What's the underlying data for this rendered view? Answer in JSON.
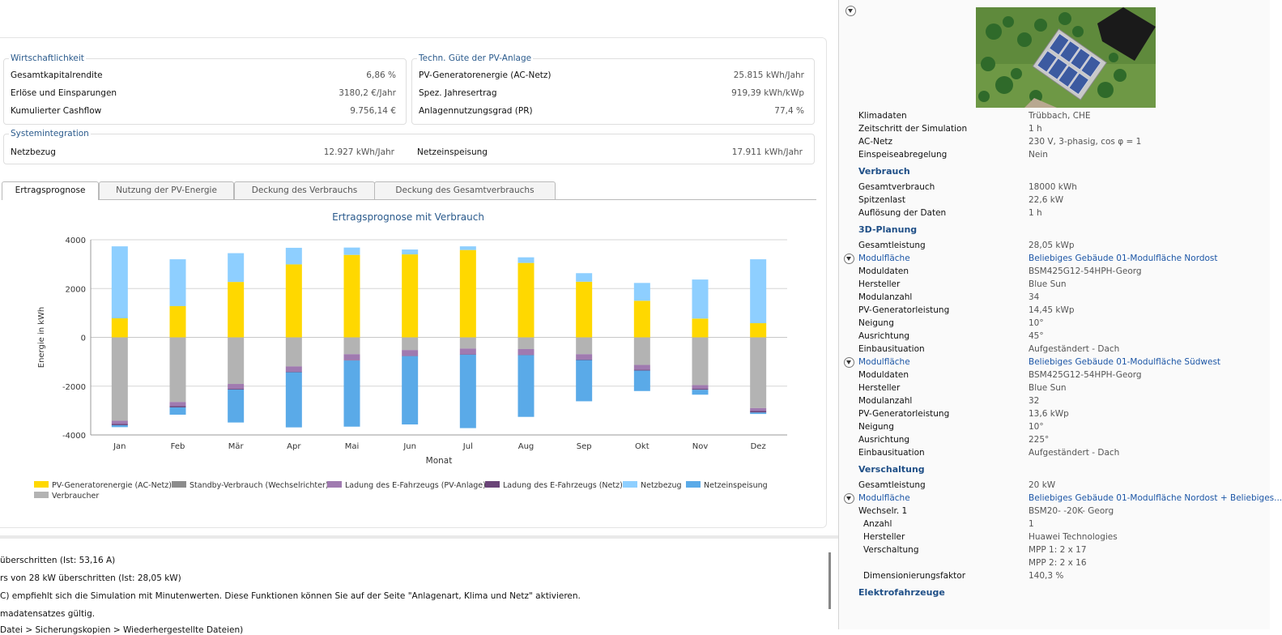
{
  "kpis": {
    "wirtschaft": {
      "title": "Wirtschaftlichkeit",
      "rows": [
        {
          "label": "Gesamtkapitalrendite",
          "value": "6,86 %"
        },
        {
          "label": "Erlöse und Einsparungen",
          "value": "3180,2 €/Jahr"
        },
        {
          "label": "Kumulierter Cashflow",
          "value": "9.756,14 €"
        }
      ]
    },
    "techn": {
      "title": "Techn. Güte der PV-Anlage",
      "rows": [
        {
          "label": "PV-Generatorenergie (AC-Netz)",
          "value": "25.815 kWh/Jahr"
        },
        {
          "label": "Spez. Jahresertrag",
          "value": "919,39 kWh/kWp"
        },
        {
          "label": "Anlagennutzungsgrad (PR)",
          "value": "77,4 %"
        }
      ]
    },
    "system": {
      "title": "Systemintegration",
      "netzbezug_label": "Netzbezug",
      "netzbezug_value": "12.927 kWh/Jahr",
      "einspeisung_label": "Netzeinspeisung",
      "einspeisung_value": "17.911 kWh/Jahr"
    }
  },
  "tabs": [
    "Ertragsprognose",
    "Nutzung der PV-Energie",
    "Deckung des Verbrauchs",
    "Deckung des Gesamtverbrauchs"
  ],
  "chart_data": {
    "type": "bar",
    "stacked": true,
    "title": "Ertragsprognose mit Verbrauch",
    "xlabel": "Monat",
    "ylabel": "Energie in kWh",
    "ylim": [
      -4000,
      4000
    ],
    "yticks": [
      4000,
      2000,
      0,
      -2000,
      -4000
    ],
    "grid": true,
    "legend": "bottom",
    "categories": [
      "Jan",
      "Feb",
      "Mär",
      "Apr",
      "Mai",
      "Jun",
      "Jul",
      "Aug",
      "Sep",
      "Okt",
      "Nov",
      "Dez"
    ],
    "series": [
      {
        "name": "PV-Generatorenergie (AC-Netz)",
        "color": "#ffd800",
        "values": [
          780,
          1280,
          2270,
          2990,
          3380,
          3400,
          3580,
          3050,
          2280,
          1500,
          770,
          580
        ]
      },
      {
        "name": "Netzbezug",
        "color": "#8ecfff",
        "values": [
          2950,
          1920,
          1180,
          680,
          300,
          200,
          150,
          230,
          350,
          730,
          1600,
          2620
        ]
      },
      {
        "name": "Verbraucher",
        "color": "#b3b3b3",
        "values": [
          -3420,
          -2650,
          -1910,
          -1190,
          -690,
          -520,
          -460,
          -480,
          -690,
          -1130,
          -1960,
          -2900
        ]
      },
      {
        "name": "Ladung des E-Fahrzeugs (PV-Anlage)",
        "color": "#a07ab0",
        "values": [
          -130,
          -170,
          -200,
          -220,
          -250,
          -240,
          -240,
          -240,
          -220,
          -200,
          -150,
          -120
        ]
      },
      {
        "name": "Ladung des E-Fahrzeugs (Netz)",
        "color": "#6a4478",
        "values": [
          -50,
          -50,
          -30,
          -20,
          -10,
          -10,
          -10,
          -10,
          -20,
          -30,
          -40,
          -60
        ]
      },
      {
        "name": "Netzeinspeisung",
        "color": "#5aaae8",
        "values": [
          -80,
          -300,
          -1350,
          -2260,
          -2710,
          -2800,
          -3010,
          -2530,
          -1690,
          -840,
          -200,
          -60
        ]
      },
      {
        "name": "Standby-Verbrauch (Wechselrichter)",
        "color": "#8c8c8c",
        "values": [
          0,
          0,
          0,
          0,
          0,
          0,
          0,
          0,
          0,
          0,
          0,
          0
        ]
      }
    ]
  },
  "legend_items": [
    {
      "name": "PV-Generatorenergie (AC-Netz)",
      "color": "#ffd800"
    },
    {
      "name": "Standby-Verbrauch (Wechselrichter)",
      "color": "#8c8c8c"
    },
    {
      "name": "Ladung des E-Fahrzeugs (PV-Anlage)",
      "color": "#a07ab0"
    },
    {
      "name": "Ladung des E-Fahrzeugs (Netz)",
      "color": "#6a4478"
    },
    {
      "name": "Netzbezug",
      "color": "#8ecfff"
    },
    {
      "name": "Netzeinspeisung",
      "color": "#5aaae8"
    },
    {
      "name": "Verbraucher",
      "color": "#b3b3b3"
    }
  ],
  "messages": [
    "überschritten (Ist: 53,16 A)",
    "rs von 28 kW überschritten (Ist: 28,05 kW)",
    "C) empfiehlt sich die Simulation mit Minutenwerten. Diese Funktionen können Sie auf der Seite \"Anlagenart, Klima und Netz\" aktivieren.",
    "madatensatzes gültig.",
    "Datei > Sicherungskopien > Wiederhergestellte Dateien)"
  ],
  "side": {
    "allgemein": [
      {
        "k": "Klimadaten",
        "v": "Trübbach, CHE"
      },
      {
        "k": "Zeitschritt der Simulation",
        "v": "1 h"
      },
      {
        "k": "AC-Netz",
        "v": "230 V, 3-phasig, cos φ = 1"
      },
      {
        "k": "Einspeiseabregelung",
        "v": "Nein"
      }
    ],
    "verbrauch_title": "Verbrauch",
    "verbrauch": [
      {
        "k": "Gesamtverbrauch",
        "v": "18000 kWh"
      },
      {
        "k": "Spitzenlast",
        "v": "22,6 kW"
      },
      {
        "k": "Auflösung der Daten",
        "v": "1 h"
      }
    ],
    "planung_title": "3D-Planung",
    "planung_gesamt": {
      "k": "Gesamtleistung",
      "v": "28,05 kWp"
    },
    "flaeche1": {
      "k": "Modulfläche",
      "v": "Beliebiges Gebäude 01-Modulfläche Nordost"
    },
    "flaeche1_rows": [
      {
        "k": "Moduldaten",
        "v": "BSM425G12-54HPH-Georg"
      },
      {
        "k": "Hersteller",
        "v": "Blue Sun"
      },
      {
        "k": "Modulanzahl",
        "v": "34"
      },
      {
        "k": "PV-Generatorleistung",
        "v": "14,45 kWp"
      },
      {
        "k": "Neigung",
        "v": "10°"
      },
      {
        "k": "Ausrichtung",
        "v": "45°"
      },
      {
        "k": "Einbausituation",
        "v": "Aufgeständert - Dach"
      }
    ],
    "flaeche2": {
      "k": "Modulfläche",
      "v": "Beliebiges Gebäude 01-Modulfläche Südwest"
    },
    "flaeche2_rows": [
      {
        "k": "Moduldaten",
        "v": "BSM425G12-54HPH-Georg"
      },
      {
        "k": "Hersteller",
        "v": "Blue Sun"
      },
      {
        "k": "Modulanzahl",
        "v": "32"
      },
      {
        "k": "PV-Generatorleistung",
        "v": "13,6 kWp"
      },
      {
        "k": "Neigung",
        "v": "10°"
      },
      {
        "k": "Ausrichtung",
        "v": "225°"
      },
      {
        "k": "Einbausituation",
        "v": "Aufgeständert - Dach"
      }
    ],
    "verschaltung_title": "Verschaltung",
    "verschaltung_gesamt": {
      "k": "Gesamtleistung",
      "v": "20 kW"
    },
    "flaeche3": {
      "k": "Modulfläche",
      "v": "Beliebiges Gebäude 01-Modulfläche Nordost + Beliebiges..."
    },
    "wechselrichter": {
      "k": "Wechselr. 1",
      "v": "BSM20- -20K-  Georg"
    },
    "wr_rows": [
      {
        "k": "Anzahl",
        "v": "1"
      },
      {
        "k": "Hersteller",
        "v": "Huawei Technologies"
      },
      {
        "k": "Verschaltung",
        "v": "MPP 1: 2 x 17"
      },
      {
        "k": "",
        "v": "MPP 2: 2 x 16"
      },
      {
        "k": "Dimensionierungsfaktor",
        "v": "140,3 %"
      }
    ],
    "elektro_title": "Elektrofahrzeuge"
  }
}
